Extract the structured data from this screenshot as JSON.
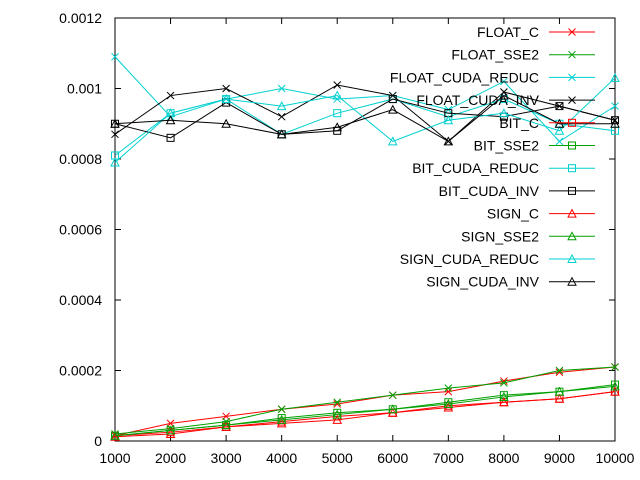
{
  "chart_data": {
    "type": "line",
    "title": "",
    "xlabel": "",
    "ylabel": "",
    "xlim": [
      1000,
      10000
    ],
    "ylim": [
      0,
      0.0012
    ],
    "x_ticks": [
      "1000",
      "2000",
      "3000",
      "4000",
      "5000",
      "6000",
      "7000",
      "8000",
      "9000",
      "10000"
    ],
    "y_ticks": [
      "0",
      "0.0002",
      "0.0004",
      "0.0006",
      "0.0008",
      "0.001",
      "0.0012"
    ],
    "grid": false,
    "legend_position": "top-right",
    "x": [
      1000,
      2000,
      3000,
      4000,
      5000,
      6000,
      7000,
      8000,
      9000,
      10000
    ],
    "series": [
      {
        "name": "FLOAT_C",
        "color": "#ff0000",
        "marker": "x",
        "values": [
          1.5e-05,
          5e-05,
          7e-05,
          9e-05,
          0.000105,
          0.00013,
          0.00014,
          0.00017,
          0.000195,
          0.00021
        ]
      },
      {
        "name": "FLOAT_SSE2",
        "color": "#00a000",
        "marker": "x",
        "values": [
          2e-05,
          3.5e-05,
          5.5e-05,
          9e-05,
          0.00011,
          0.00013,
          0.00015,
          0.000165,
          0.0002,
          0.00021
        ]
      },
      {
        "name": "FLOAT_CUDA_REDUC",
        "color": "#00d0d0",
        "marker": "x",
        "values": [
          0.00109,
          0.00092,
          0.00097,
          0.001,
          0.00097,
          0.00098,
          0.00094,
          0.00102,
          0.00085,
          0.00095
        ]
      },
      {
        "name": "FLOAT_CUDA_INV",
        "color": "#000000",
        "marker": "x",
        "values": [
          0.00087,
          0.00098,
          0.001,
          0.00092,
          0.00101,
          0.00098,
          0.00085,
          0.00099,
          0.00095,
          0.00091
        ]
      },
      {
        "name": "BIT_C",
        "color": "#ff0000",
        "marker": "square",
        "values": [
          1.5e-05,
          2.5e-05,
          4e-05,
          5.5e-05,
          7e-05,
          8e-05,
          0.0001,
          0.00011,
          0.00012,
          0.00014
        ]
      },
      {
        "name": "BIT_SSE2",
        "color": "#00a000",
        "marker": "square",
        "values": [
          1.5e-05,
          3e-05,
          4.5e-05,
          6.5e-05,
          8e-05,
          9e-05,
          0.00011,
          0.00013,
          0.00014,
          0.00016
        ]
      },
      {
        "name": "BIT_CUDA_REDUC",
        "color": "#00d0d0",
        "marker": "square",
        "values": [
          0.00081,
          0.00093,
          0.00097,
          0.00087,
          0.00093,
          0.00097,
          0.00092,
          0.00097,
          0.0009,
          0.00088
        ]
      },
      {
        "name": "BIT_CUDA_INV",
        "color": "#000000",
        "marker": "square",
        "values": [
          0.0009,
          0.00086,
          0.00096,
          0.00087,
          0.00088,
          0.00097,
          0.00093,
          0.00092,
          0.00095,
          0.00091
        ]
      },
      {
        "name": "SIGN_C",
        "color": "#ff0000",
        "marker": "triangle",
        "values": [
          1.2e-05,
          2e-05,
          4e-05,
          5e-05,
          6e-05,
          8e-05,
          9.5e-05,
          0.00011,
          0.00012,
          0.00014
        ]
      },
      {
        "name": "SIGN_SSE2",
        "color": "#00a000",
        "marker": "triangle",
        "values": [
          1.5e-05,
          3e-05,
          4.5e-05,
          6e-05,
          7.5e-05,
          9e-05,
          0.000105,
          0.000125,
          0.00014,
          0.000155
        ]
      },
      {
        "name": "SIGN_CUDA_REDUC",
        "color": "#00d0d0",
        "marker": "triangle",
        "values": [
          0.00079,
          0.00093,
          0.00097,
          0.00095,
          0.00098,
          0.00085,
          0.00091,
          0.00093,
          0.00088,
          0.00103
        ]
      },
      {
        "name": "SIGN_CUDA_INV",
        "color": "#000000",
        "marker": "triangle",
        "values": [
          0.0009,
          0.00091,
          0.0009,
          0.00087,
          0.00089,
          0.00094,
          0.00085,
          0.00098,
          0.0009,
          0.0009
        ]
      }
    ]
  }
}
